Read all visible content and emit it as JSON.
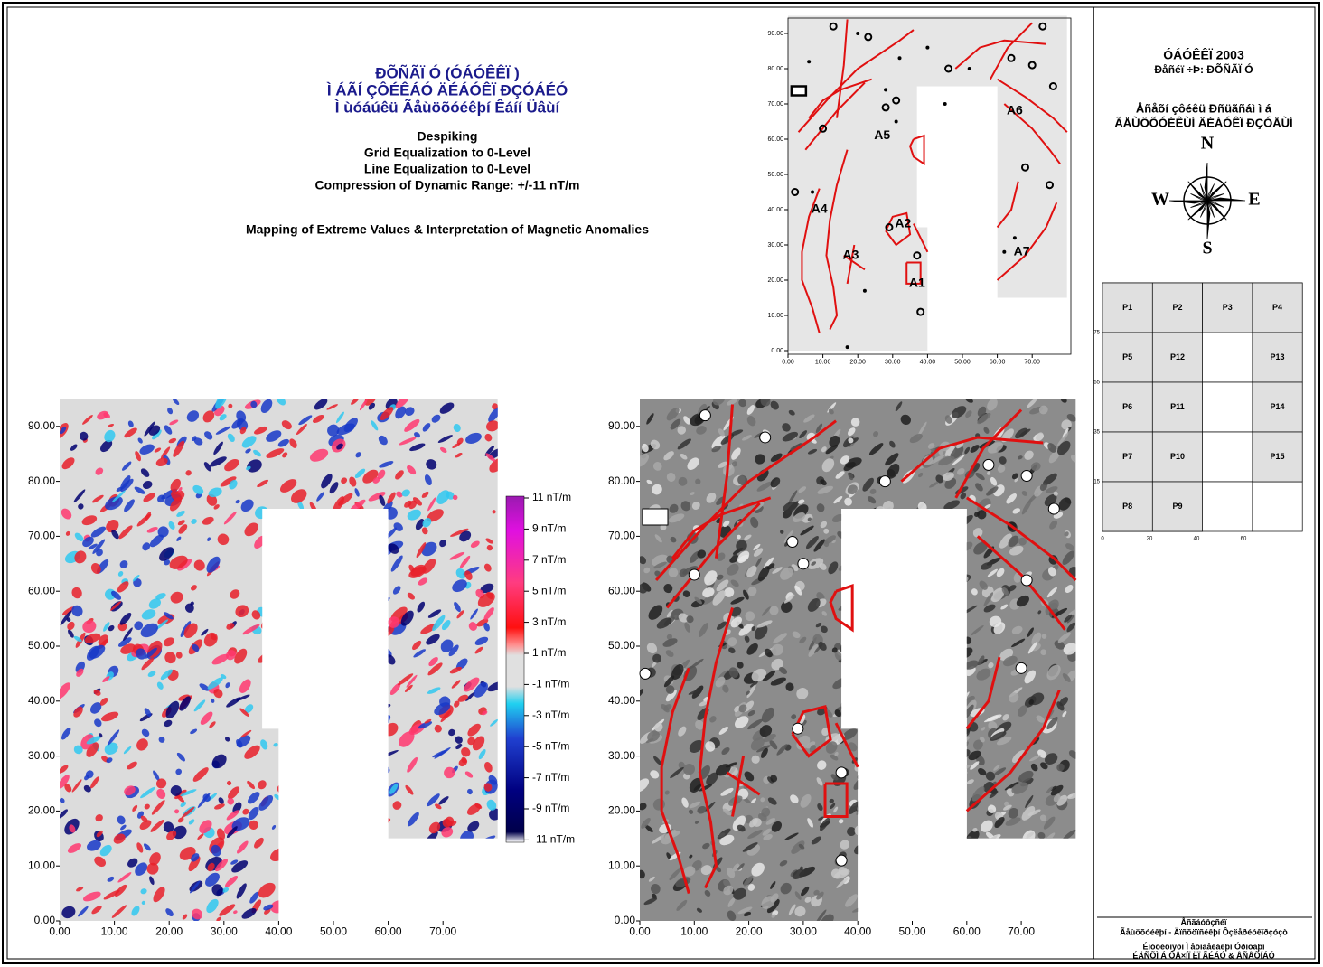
{
  "header": {
    "title_lines": [
      "ÐÕÑÃÏ Ó (ÓÁÓÊÊÏ )",
      "Ì ÁÃÍ ÇÔÉÊÁÓ ÄÉÁÓÊÏ ÐÇÓÁÉÓ",
      "Ì ùóáúêü Ãåùöõóéêþí Êáíí Üâùí"
    ],
    "processing": [
      "Despiking",
      "Grid Equalization to 0-Level",
      "Line Equalization to 0-Level",
      "Compression of Dynamic Range: +/-11 nT/m"
    ],
    "mapping": "Mapping of Extreme Values & Interpretation of Magnetic Anomalies"
  },
  "interpretation_map": {
    "x_ticks": [
      "0.00",
      "10.00",
      "20.00",
      "30.00",
      "40.00",
      "50.00",
      "60.00",
      "70.00"
    ],
    "y_ticks": [
      "0.00",
      "10.00",
      "20.00",
      "30.00",
      "40.00",
      "50.00",
      "60.00",
      "70.00",
      "80.00",
      "90.00"
    ],
    "anomalies": [
      "A1",
      "A2",
      "A3",
      "A4",
      "A5",
      "A6",
      "A7"
    ]
  },
  "magnetic_map": {
    "x_ticks": [
      "0.00",
      "10.00",
      "20.00",
      "30.00",
      "40.00",
      "50.00",
      "60.00",
      "70.00"
    ],
    "y_ticks": [
      "0.00",
      "10.00",
      "20.00",
      "30.00",
      "40.00",
      "50.00",
      "60.00",
      "70.00",
      "80.00",
      "90.00"
    ]
  },
  "color_scale": [
    "11 nT/m",
    "9 nT/m",
    "7 nT/m",
    "5 nT/m",
    "3 nT/m",
    "1 nT/m",
    "-1 nT/m",
    "-3 nT/m",
    "-5 nT/m",
    "-7 nT/m",
    "-9 nT/m",
    "-11 nT/m"
  ],
  "interpreted_map": {
    "x_ticks": [
      "0.00",
      "10.00",
      "20.00",
      "30.00",
      "40.00",
      "50.00",
      "60.00",
      "70.00"
    ],
    "y_ticks": [
      "0.00",
      "10.00",
      "20.00",
      "30.00",
      "40.00",
      "50.00",
      "60.00",
      "70.00",
      "80.00",
      "90.00"
    ]
  },
  "info_panel": {
    "title": "ÓÁÓÊÊÏ 2003",
    "subtitle": "Ðåñéï ÷Þ: ÐÕÑÃÏ Ó",
    "lines": [
      "Åñåõí çôéêü Ðñüãñáì ì á",
      "ÃÅÙÖÕÓÉÊÙÍ ÄÉÁÓÊÏ ÐÇÓÅÙÍ"
    ],
    "compass": [
      "N",
      "E",
      "S",
      "W"
    ],
    "grid_cells": [
      "P1",
      "P2",
      "P3",
      "P4",
      "P5",
      "P12",
      "P13",
      "P6",
      "P11",
      "P14",
      "P7",
      "P10",
      "P15",
      "P8",
      "P9"
    ],
    "grid_x_ticks": [
      "0",
      "20",
      "40",
      "60"
    ],
    "grid_y_ticks": [
      "75",
      "55",
      "35",
      "15"
    ],
    "footer": [
      "Åñãáóôçñéï",
      "Ãåùöõóéêþí - Äïñõöïñéêþí Ôçëåðéóêïðçóçò",
      "Éíóôéôïýôï Ì åóïãåéáêþí Óðïõäþí",
      "ÉÄÑÕÌ Á ÔÅ×ÍÏ ËÏ ÃÉÁÓ & ÅÑÅÕÍÁÓ"
    ]
  }
}
